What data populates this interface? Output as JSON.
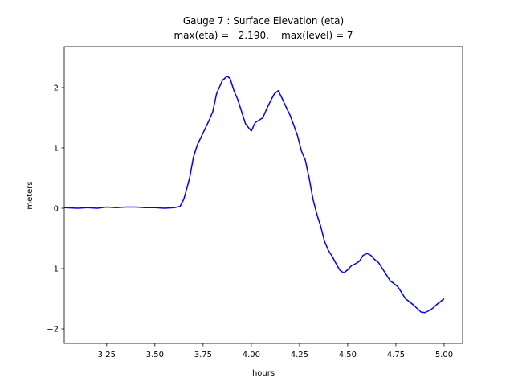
{
  "chart_data": {
    "type": "line",
    "title": "Gauge 7 : Surface Elevation (eta)",
    "subtitle": "max(eta) =   2.190,    max(level) = 7",
    "x_label": "hours",
    "y_label": "meters",
    "xlim": [
      3.03,
      5.096
    ],
    "ylim": [
      -2.24,
      2.68
    ],
    "xticks": [
      3.25,
      {
        "value": 3.5,
        "label": "3.50"
      },
      3.75,
      {
        "value": 4.0,
        "label": "4.00"
      },
      4.25,
      {
        "value": 4.5,
        "label": "4.50"
      },
      4.75,
      {
        "value": 5.0,
        "label": "5.00"
      }
    ],
    "yticks": [
      {
        "value": -2,
        "label": "−2"
      },
      {
        "value": -1,
        "label": "−1"
      },
      0,
      1,
      2
    ],
    "grid": false,
    "series": [
      {
        "color": "#0000ff",
        "x": [
          3.03,
          3.1,
          3.15,
          3.2,
          3.25,
          3.3,
          3.35,
          3.4,
          3.45,
          3.5,
          3.55,
          3.6,
          3.63,
          3.65,
          3.68,
          3.7,
          3.72,
          3.75,
          3.78,
          3.8,
          3.82,
          3.85,
          3.875,
          3.89,
          3.91,
          3.93,
          3.95,
          3.97,
          4.0,
          4.02,
          4.04,
          4.06,
          4.08,
          4.1,
          4.12,
          4.14,
          4.16,
          4.18,
          4.2,
          4.22,
          4.24,
          4.26,
          4.28,
          4.3,
          4.32,
          4.34,
          4.36,
          4.38,
          4.4,
          4.42,
          4.44,
          4.46,
          4.48,
          4.5,
          4.52,
          4.54,
          4.56,
          4.58,
          4.6,
          4.62,
          4.64,
          4.66,
          4.68,
          4.7,
          4.72,
          4.74,
          4.76,
          4.78,
          4.8,
          4.82,
          4.84,
          4.86,
          4.88,
          4.9,
          4.92,
          4.94,
          4.96,
          4.98,
          5.0
        ],
        "values": [
          0.01,
          0.0,
          0.01,
          0.0,
          0.02,
          0.01,
          0.02,
          0.02,
          0.01,
          0.01,
          0.0,
          0.01,
          0.03,
          0.15,
          0.5,
          0.85,
          1.05,
          1.25,
          1.45,
          1.6,
          1.9,
          2.12,
          2.19,
          2.15,
          1.95,
          1.8,
          1.6,
          1.4,
          1.28,
          1.42,
          1.46,
          1.5,
          1.65,
          1.78,
          1.9,
          1.95,
          1.82,
          1.68,
          1.55,
          1.38,
          1.2,
          0.95,
          0.8,
          0.5,
          0.15,
          -0.1,
          -0.3,
          -0.55,
          -0.7,
          -0.8,
          -0.92,
          -1.03,
          -1.07,
          -1.02,
          -0.95,
          -0.92,
          -0.88,
          -0.78,
          -0.75,
          -0.78,
          -0.85,
          -0.9,
          -1.0,
          -1.1,
          -1.2,
          -1.25,
          -1.3,
          -1.4,
          -1.5,
          -1.55,
          -1.6,
          -1.66,
          -1.72,
          -1.73,
          -1.7,
          -1.66,
          -1.6,
          -1.55,
          -1.5
        ]
      }
    ]
  }
}
